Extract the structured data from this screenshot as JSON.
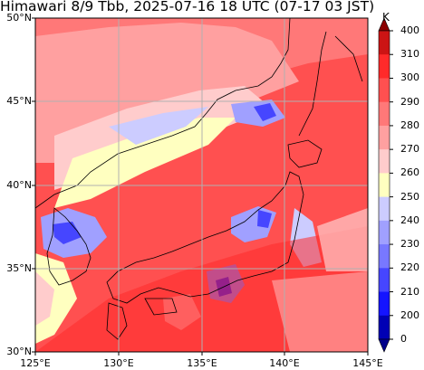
{
  "title": "Himawari 8/9 Tbb, 2025-07-16 18 UTC (07-17 03 JST)",
  "map": {
    "lon_range": [
      125,
      145
    ],
    "lat_range": [
      30,
      50
    ],
    "gridlines": true,
    "lat_ticks": [
      {
        "value": 50,
        "label": "50°N"
      },
      {
        "value": 45,
        "label": "45°N"
      },
      {
        "value": 40,
        "label": "40°N"
      },
      {
        "value": 35,
        "label": "35°N"
      },
      {
        "value": 30,
        "label": "30°N"
      }
    ],
    "lon_ticks": [
      {
        "value": 125,
        "label": "125°E"
      },
      {
        "value": 130,
        "label": "130°E"
      },
      {
        "value": 135,
        "label": "135°E"
      },
      {
        "value": 140,
        "label": "140°E"
      },
      {
        "value": 145,
        "label": "145°E"
      }
    ]
  },
  "colorbar": {
    "unit": "K",
    "tick_labels": [
      "400",
      "310",
      "300",
      "290",
      "280",
      "270",
      "260",
      "250",
      "240",
      "230",
      "220",
      "210",
      "200",
      "0"
    ],
    "colors_top_to_bottom": [
      "#8b0000",
      "#cc1414",
      "#ff2a2a",
      "#ff5050",
      "#ff7878",
      "#ffa0a0",
      "#ffcccc",
      "#ffffc0",
      "#ccccff",
      "#a0a0ff",
      "#7878ff",
      "#4646ff",
      "#1414ff",
      "#0000b4",
      "#00008b"
    ],
    "extend": "both"
  }
}
